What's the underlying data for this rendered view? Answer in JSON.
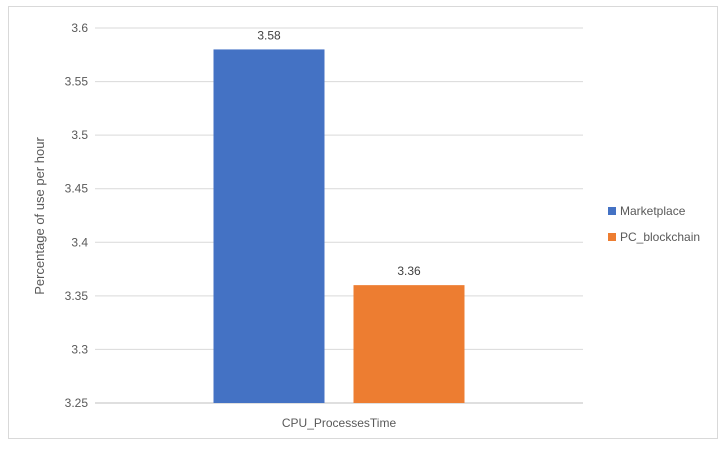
{
  "chart_data": {
    "type": "bar",
    "categories": [
      "CPU_ProcessesTime"
    ],
    "series": [
      {
        "name": "Marketplace",
        "values": [
          3.58
        ],
        "color": "#4472C4"
      },
      {
        "name": "PC_blockchain",
        "values": [
          3.36
        ],
        "color": "#ED7D31"
      }
    ],
    "data_labels": [
      "3.58",
      "3.36"
    ],
    "xlabel": "",
    "ylabel": "Percentage of use per hour",
    "ylim": [
      3.25,
      3.6
    ],
    "yticks": [
      "3.25",
      "3.3",
      "3.35",
      "3.4",
      "3.45",
      "3.5",
      "3.55",
      "3.6"
    ],
    "grid": true,
    "legend": "right"
  }
}
